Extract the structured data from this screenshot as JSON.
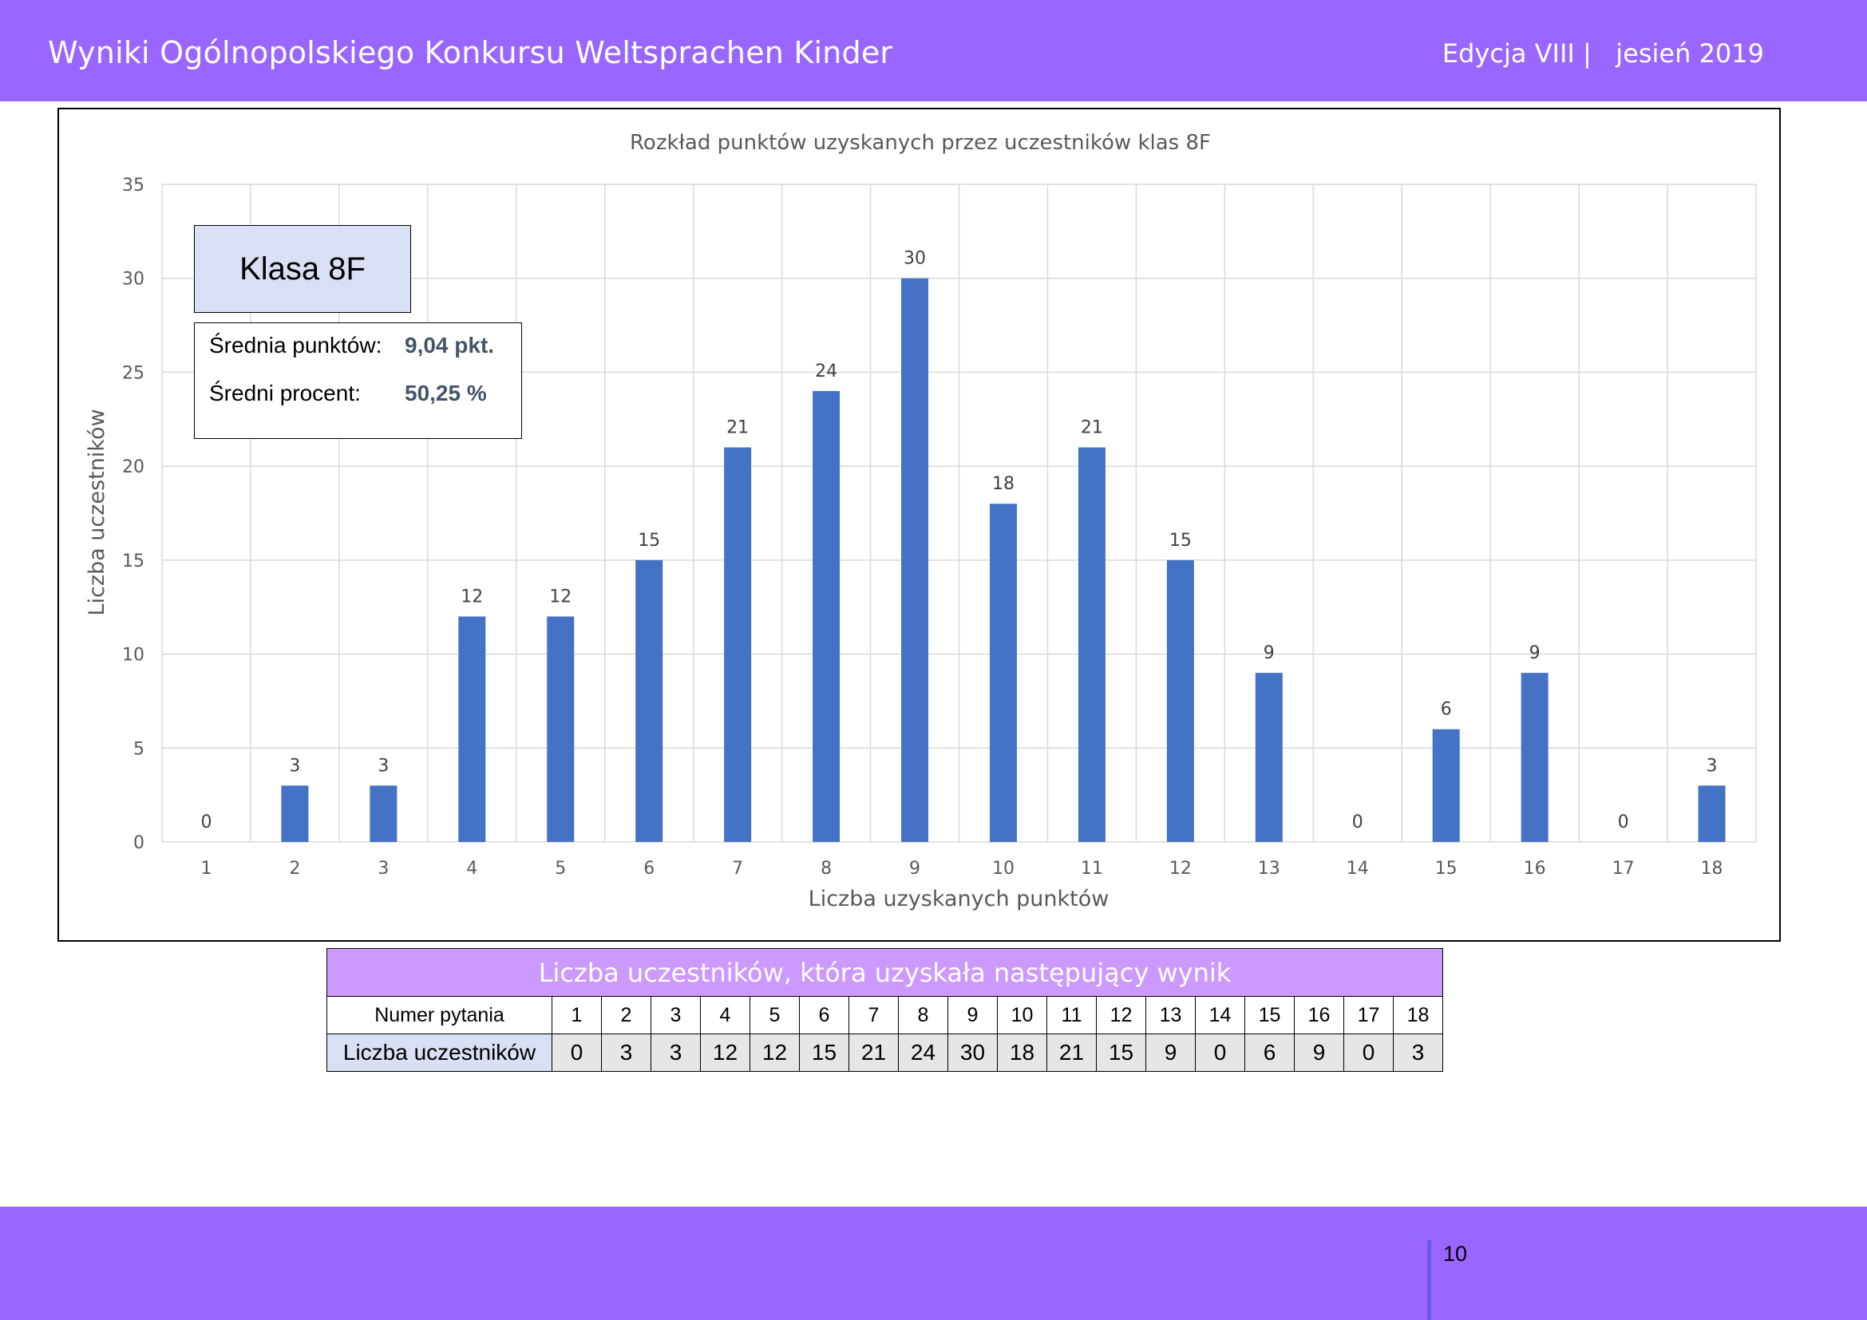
{
  "header": {
    "title": "Wyniki Ogólnopolskiego Konkursu Weltsprachen Kinder",
    "edition": "Edycja VIII |   jesień 2019"
  },
  "chart_data": {
    "type": "bar",
    "title": "Rozkład punktów uzyskanych przez uczestników klas 8F",
    "xlabel": "Liczba uzyskanych punktów",
    "ylabel": "Liczba uczestników",
    "ylim": [
      0,
      35
    ],
    "yticks": [
      "0",
      "5",
      "10",
      "15",
      "20",
      "25",
      "30",
      "35"
    ],
    "grid": true,
    "bar_color": "#4472c4",
    "categories": [
      "1",
      "2",
      "3",
      "4",
      "5",
      "6",
      "7",
      "8",
      "9",
      "10",
      "11",
      "12",
      "13",
      "14",
      "15",
      "16",
      "17",
      "18"
    ],
    "values": [
      0,
      3,
      3,
      12,
      12,
      15,
      21,
      24,
      30,
      18,
      21,
      15,
      9,
      0,
      6,
      9,
      0,
      3
    ]
  },
  "class_box": {
    "label": "Klasa 8F"
  },
  "stats": {
    "avg_points_label": "Średnia punktów:",
    "avg_points_value": "9,04 pkt.",
    "avg_percent_label": "Średni procent:",
    "avg_percent_value": "50,25 %"
  },
  "table": {
    "title": "Liczba uczestników, która uzyskała następujący wynik",
    "row1_label": "Numer pytania",
    "row2_label": "Liczba uczestników",
    "questions": [
      "1",
      "2",
      "3",
      "4",
      "5",
      "6",
      "7",
      "8",
      "9",
      "10",
      "11",
      "12",
      "13",
      "14",
      "15",
      "16",
      "17",
      "18"
    ],
    "counts": [
      "0",
      "3",
      "3",
      "12",
      "12",
      "15",
      "21",
      "24",
      "30",
      "18",
      "21",
      "15",
      "9",
      "0",
      "6",
      "9",
      "0",
      "3"
    ]
  },
  "footer": {
    "page_number": "10"
  }
}
